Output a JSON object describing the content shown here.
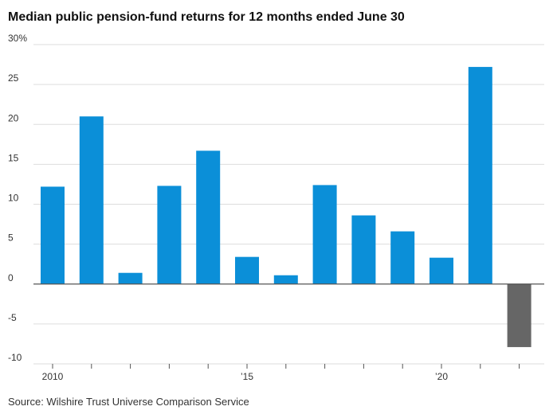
{
  "chart_data": {
    "type": "bar",
    "title": "Median public pension-fund returns for 12 months ended June 30",
    "source": "Source: Wilshire Trust Universe Comparison Service",
    "categories": [
      "2010",
      "2011",
      "2012",
      "2013",
      "2014",
      "2015",
      "2016",
      "2017",
      "2018",
      "2019",
      "2020",
      "2021",
      "2022"
    ],
    "values": [
      12.2,
      21.0,
      1.4,
      12.3,
      16.7,
      3.4,
      1.1,
      12.4,
      8.6,
      6.6,
      3.3,
      27.2,
      -7.9
    ],
    "ylim": [
      -10,
      30
    ],
    "yticks": [
      30,
      25,
      20,
      15,
      10,
      5,
      0,
      -5,
      -10
    ],
    "ytick_labels": [
      "30%",
      "25",
      "20",
      "15",
      "10",
      "5",
      "0",
      "-5",
      "-10"
    ],
    "xtick_labels": [
      {
        "category": "2010",
        "label": "2010"
      },
      {
        "category": "2015",
        "label": "’15"
      },
      {
        "category": "2020",
        "label": "’20"
      }
    ],
    "colors": {
      "positive": "#0b8fd8",
      "negative": "#666666",
      "grid": "#dddddd",
      "zero": "#555555"
    },
    "xlabel": "",
    "ylabel": ""
  }
}
